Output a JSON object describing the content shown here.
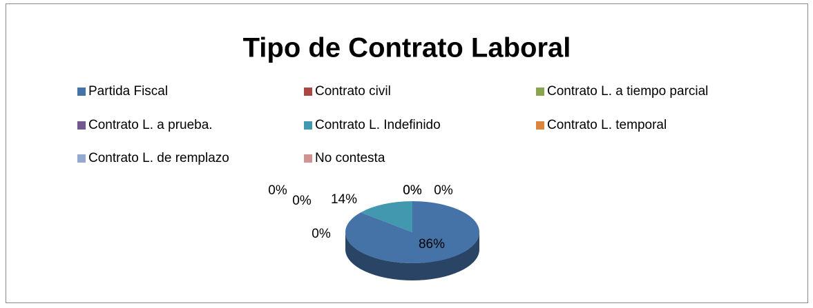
{
  "chart_data": {
    "type": "pie",
    "title": "Tipo de Contrato Laboral",
    "categories": [
      "Partida Fiscal",
      "Contrato civil",
      "Contrato L. a tiempo parcial",
      "Contrato L. a prueba.",
      "Contrato L. Indefinido",
      "Contrato L. temporal",
      "Contrato L. de remplazo",
      "No contesta"
    ],
    "values": [
      86,
      0,
      0,
      0,
      14,
      0,
      0,
      0
    ],
    "value_labels": [
      "86%",
      "0%",
      "0%",
      "0%",
      "14%",
      "0%",
      "0%",
      "0%"
    ],
    "colors": [
      "#4572a7",
      "#aa4643",
      "#89a54e",
      "#71588f",
      "#4198af",
      "#db843d",
      "#93a9cf",
      "#d19392"
    ],
    "legend": "top"
  }
}
